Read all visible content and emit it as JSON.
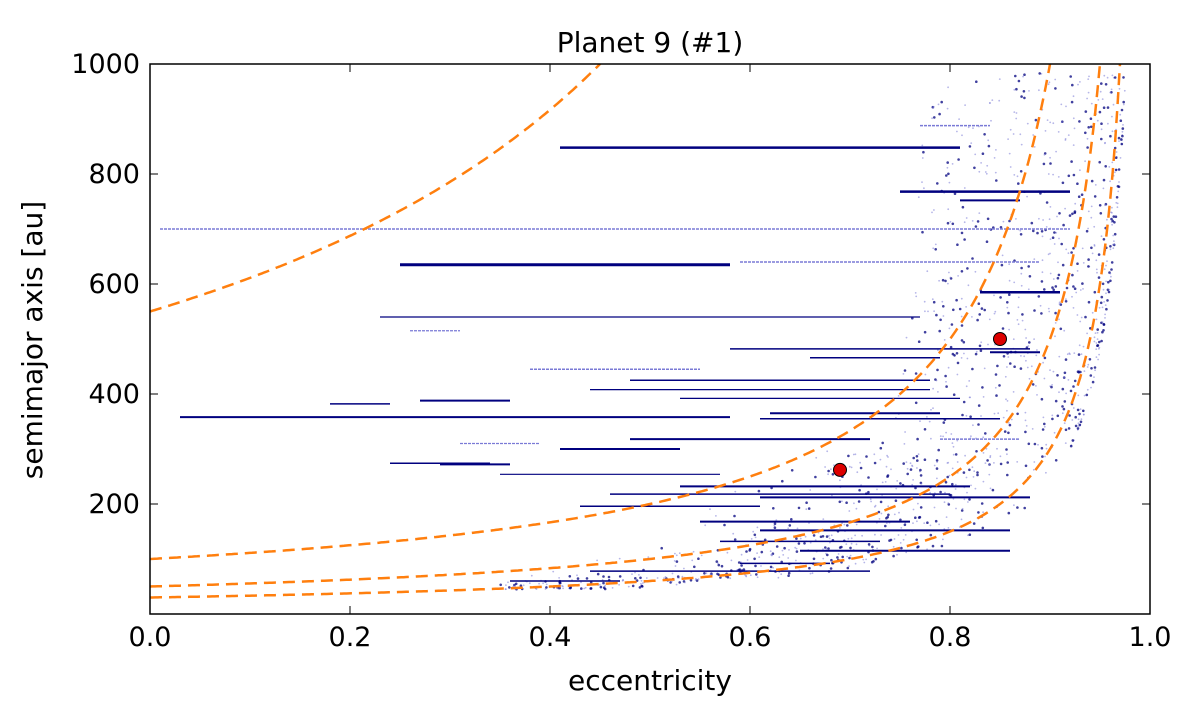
{
  "chart_data": {
    "type": "scatter",
    "title": "Planet 9 (#1)",
    "xlabel": "eccentricity",
    "ylabel": "semimajor axis [au]",
    "xlim": [
      0.0,
      1.0
    ],
    "ylim": [
      0,
      1000
    ],
    "xticks": [
      "0.0",
      "0.2",
      "0.4",
      "0.6",
      "0.8",
      "1.0"
    ],
    "yticks": [
      "200",
      "400",
      "600",
      "800",
      "1000"
    ],
    "xtick_values": [
      0.0,
      0.2,
      0.4,
      0.6,
      0.8,
      1.0
    ],
    "ytick_values": [
      200,
      400,
      600,
      800,
      1000
    ],
    "colors": {
      "tracks": "#00007f",
      "tracks_light": "#7a7ad6",
      "curves": "#ff7f0e",
      "markers": "#dd0000"
    },
    "markers": [
      {
        "name": "object-1",
        "x": 0.69,
        "y": 262
      },
      {
        "name": "object-2",
        "x": 0.85,
        "y": 500
      }
    ],
    "dashed_curves": [
      {
        "name": "q = 30 au",
        "q": 30
      },
      {
        "name": "q = 50 au",
        "q": 50
      },
      {
        "name": "q = 100 au",
        "q": 100
      },
      {
        "name": "q = 550 au",
        "q": 550
      }
    ],
    "tracks": [
      {
        "e0": 0.41,
        "e1": 0.81,
        "a": 848,
        "w": 2.5,
        "light": false
      },
      {
        "e0": 0.77,
        "e1": 0.84,
        "a": 888,
        "w": 1.5,
        "light": true
      },
      {
        "e0": 0.75,
        "e1": 0.92,
        "a": 768,
        "w": 2.5,
        "light": false
      },
      {
        "e0": 0.81,
        "e1": 0.87,
        "a": 752,
        "w": 2.0,
        "light": false
      },
      {
        "e0": 0.01,
        "e1": 0.92,
        "a": 700,
        "w": 1.5,
        "light": true
      },
      {
        "e0": 0.25,
        "e1": 0.58,
        "a": 635,
        "w": 3.0,
        "light": false
      },
      {
        "e0": 0.59,
        "e1": 0.89,
        "a": 640,
        "w": 1.5,
        "light": true
      },
      {
        "e0": 0.83,
        "e1": 0.91,
        "a": 585,
        "w": 2.5,
        "light": false
      },
      {
        "e0": 0.23,
        "e1": 0.77,
        "a": 540,
        "w": 1.2,
        "light": false
      },
      {
        "e0": 0.26,
        "e1": 0.31,
        "a": 515,
        "w": 1.2,
        "light": true
      },
      {
        "e0": 0.58,
        "e1": 0.88,
        "a": 482,
        "w": 1.5,
        "light": false
      },
      {
        "e0": 0.84,
        "e1": 0.89,
        "a": 476,
        "w": 2.0,
        "light": false
      },
      {
        "e0": 0.66,
        "e1": 0.79,
        "a": 466,
        "w": 1.5,
        "light": false
      },
      {
        "e0": 0.38,
        "e1": 0.55,
        "a": 445,
        "w": 1.5,
        "light": true
      },
      {
        "e0": 0.48,
        "e1": 0.78,
        "a": 425,
        "w": 1.5,
        "light": false
      },
      {
        "e0": 0.44,
        "e1": 0.78,
        "a": 408,
        "w": 1.2,
        "light": false
      },
      {
        "e0": 0.53,
        "e1": 0.81,
        "a": 392,
        "w": 1.2,
        "light": false
      },
      {
        "e0": 0.27,
        "e1": 0.36,
        "a": 388,
        "w": 2.0,
        "light": false
      },
      {
        "e0": 0.18,
        "e1": 0.24,
        "a": 382,
        "w": 1.5,
        "light": false
      },
      {
        "e0": 0.62,
        "e1": 0.79,
        "a": 365,
        "w": 2.0,
        "light": false
      },
      {
        "e0": 0.03,
        "e1": 0.58,
        "a": 358,
        "w": 2.0,
        "light": false
      },
      {
        "e0": 0.61,
        "e1": 0.85,
        "a": 355,
        "w": 1.5,
        "light": false
      },
      {
        "e0": 0.31,
        "e1": 0.39,
        "a": 310,
        "w": 1.2,
        "light": true
      },
      {
        "e0": 0.41,
        "e1": 0.53,
        "a": 300,
        "w": 2.0,
        "light": false
      },
      {
        "e0": 0.48,
        "e1": 0.72,
        "a": 318,
        "w": 2.0,
        "light": false
      },
      {
        "e0": 0.79,
        "e1": 0.87,
        "a": 318,
        "w": 1.5,
        "light": true
      },
      {
        "e0": 0.24,
        "e1": 0.34,
        "a": 274,
        "w": 1.5,
        "light": false
      },
      {
        "e0": 0.29,
        "e1": 0.36,
        "a": 272,
        "w": 2.0,
        "light": false
      },
      {
        "e0": 0.35,
        "e1": 0.57,
        "a": 254,
        "w": 1.2,
        "light": false
      },
      {
        "e0": 0.53,
        "e1": 0.82,
        "a": 232,
        "w": 2.0,
        "light": false
      },
      {
        "e0": 0.46,
        "e1": 0.8,
        "a": 218,
        "w": 1.5,
        "light": false
      },
      {
        "e0": 0.61,
        "e1": 0.88,
        "a": 212,
        "w": 2.0,
        "light": false
      },
      {
        "e0": 0.43,
        "e1": 0.61,
        "a": 196,
        "w": 1.5,
        "light": false
      },
      {
        "e0": 0.55,
        "e1": 0.76,
        "a": 168,
        "w": 2.0,
        "light": false
      },
      {
        "e0": 0.61,
        "e1": 0.86,
        "a": 152,
        "w": 2.0,
        "light": false
      },
      {
        "e0": 0.57,
        "e1": 0.73,
        "a": 132,
        "w": 1.5,
        "light": false
      },
      {
        "e0": 0.65,
        "e1": 0.86,
        "a": 115,
        "w": 2.0,
        "light": false
      },
      {
        "e0": 0.59,
        "e1": 0.68,
        "a": 92,
        "w": 1.5,
        "light": false
      },
      {
        "e0": 0.44,
        "e1": 0.72,
        "a": 78,
        "w": 1.5,
        "light": false
      },
      {
        "e0": 0.36,
        "e1": 0.47,
        "a": 60,
        "w": 1.5,
        "light": false
      }
    ]
  }
}
